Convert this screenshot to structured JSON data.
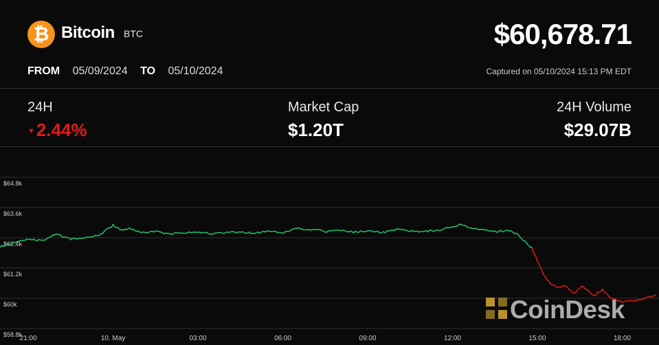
{
  "header": {
    "coin_name": "Bitcoin",
    "ticker": "BTC",
    "logo_symbol": "₿",
    "price": "$60,678.71",
    "from_label": "FROM",
    "from_date": "05/09/2024",
    "to_label": "TO",
    "to_date": "05/10/2024",
    "captured": "Captured on 05/10/2024 15:13 PM EDT"
  },
  "stats": {
    "change_label": "24H",
    "change_value": "2.44%",
    "change_direction": "down",
    "market_cap_label": "Market Cap",
    "market_cap_value": "$1.20T",
    "volume_label": "24H Volume",
    "volume_value": "$29.07B"
  },
  "colors": {
    "up": "#1fc56a",
    "down": "#e01b1b",
    "logo": "#f7931a",
    "grid": "#2e2e2e"
  },
  "watermark": "CoinDesk",
  "chart_data": {
    "type": "line",
    "y_ticks": [
      "$64.8k",
      "$63.6k",
      "$62.4k",
      "$61.2k",
      "$60k",
      "$58.8k"
    ],
    "x_ticks": [
      "21:00",
      "10. May",
      "03:00",
      "06:00",
      "09:00",
      "12:00",
      "15:00",
      "18:00"
    ],
    "ylim": [
      58800,
      64800
    ],
    "grid": true,
    "series": [
      {
        "x": [
          20.0,
          20.5,
          21.0,
          21.5,
          22.0,
          22.5,
          23.0,
          23.5,
          24.0,
          24.3,
          24.6,
          25.0,
          25.5,
          26.0,
          26.5,
          27.0,
          27.5,
          28.0,
          28.5,
          29.0,
          29.5,
          30.0,
          30.5,
          30.8,
          31.2,
          31.5,
          32.0,
          32.5,
          33.0,
          33.5,
          34.0,
          34.5,
          35.0,
          35.5,
          36.0,
          36.3,
          36.6,
          37.0,
          37.5,
          38.0,
          38.3,
          38.6,
          38.8,
          38.9,
          39.0,
          39.2,
          39.4,
          39.7,
          40.0,
          40.3,
          40.6,
          41.0,
          41.3,
          41.6,
          42.0,
          42.4,
          42.8,
          43.2
        ],
        "values": [
          62050,
          62200,
          62350,
          62300,
          62550,
          62350,
          62400,
          62500,
          62900,
          62700,
          62750,
          62600,
          62650,
          62550,
          62600,
          62620,
          62550,
          62600,
          62620,
          62580,
          62650,
          62600,
          62800,
          62700,
          62750,
          62650,
          62700,
          62630,
          62680,
          62600,
          62720,
          62680,
          62650,
          62700,
          62820,
          62950,
          62780,
          62720,
          62650,
          62680,
          62550,
          62200,
          62000,
          61750,
          61500,
          61000,
          60650,
          60400,
          60500,
          60200,
          60500,
          60100,
          60350,
          60000,
          59850,
          59900,
          60000,
          60150
        ]
      }
    ]
  }
}
